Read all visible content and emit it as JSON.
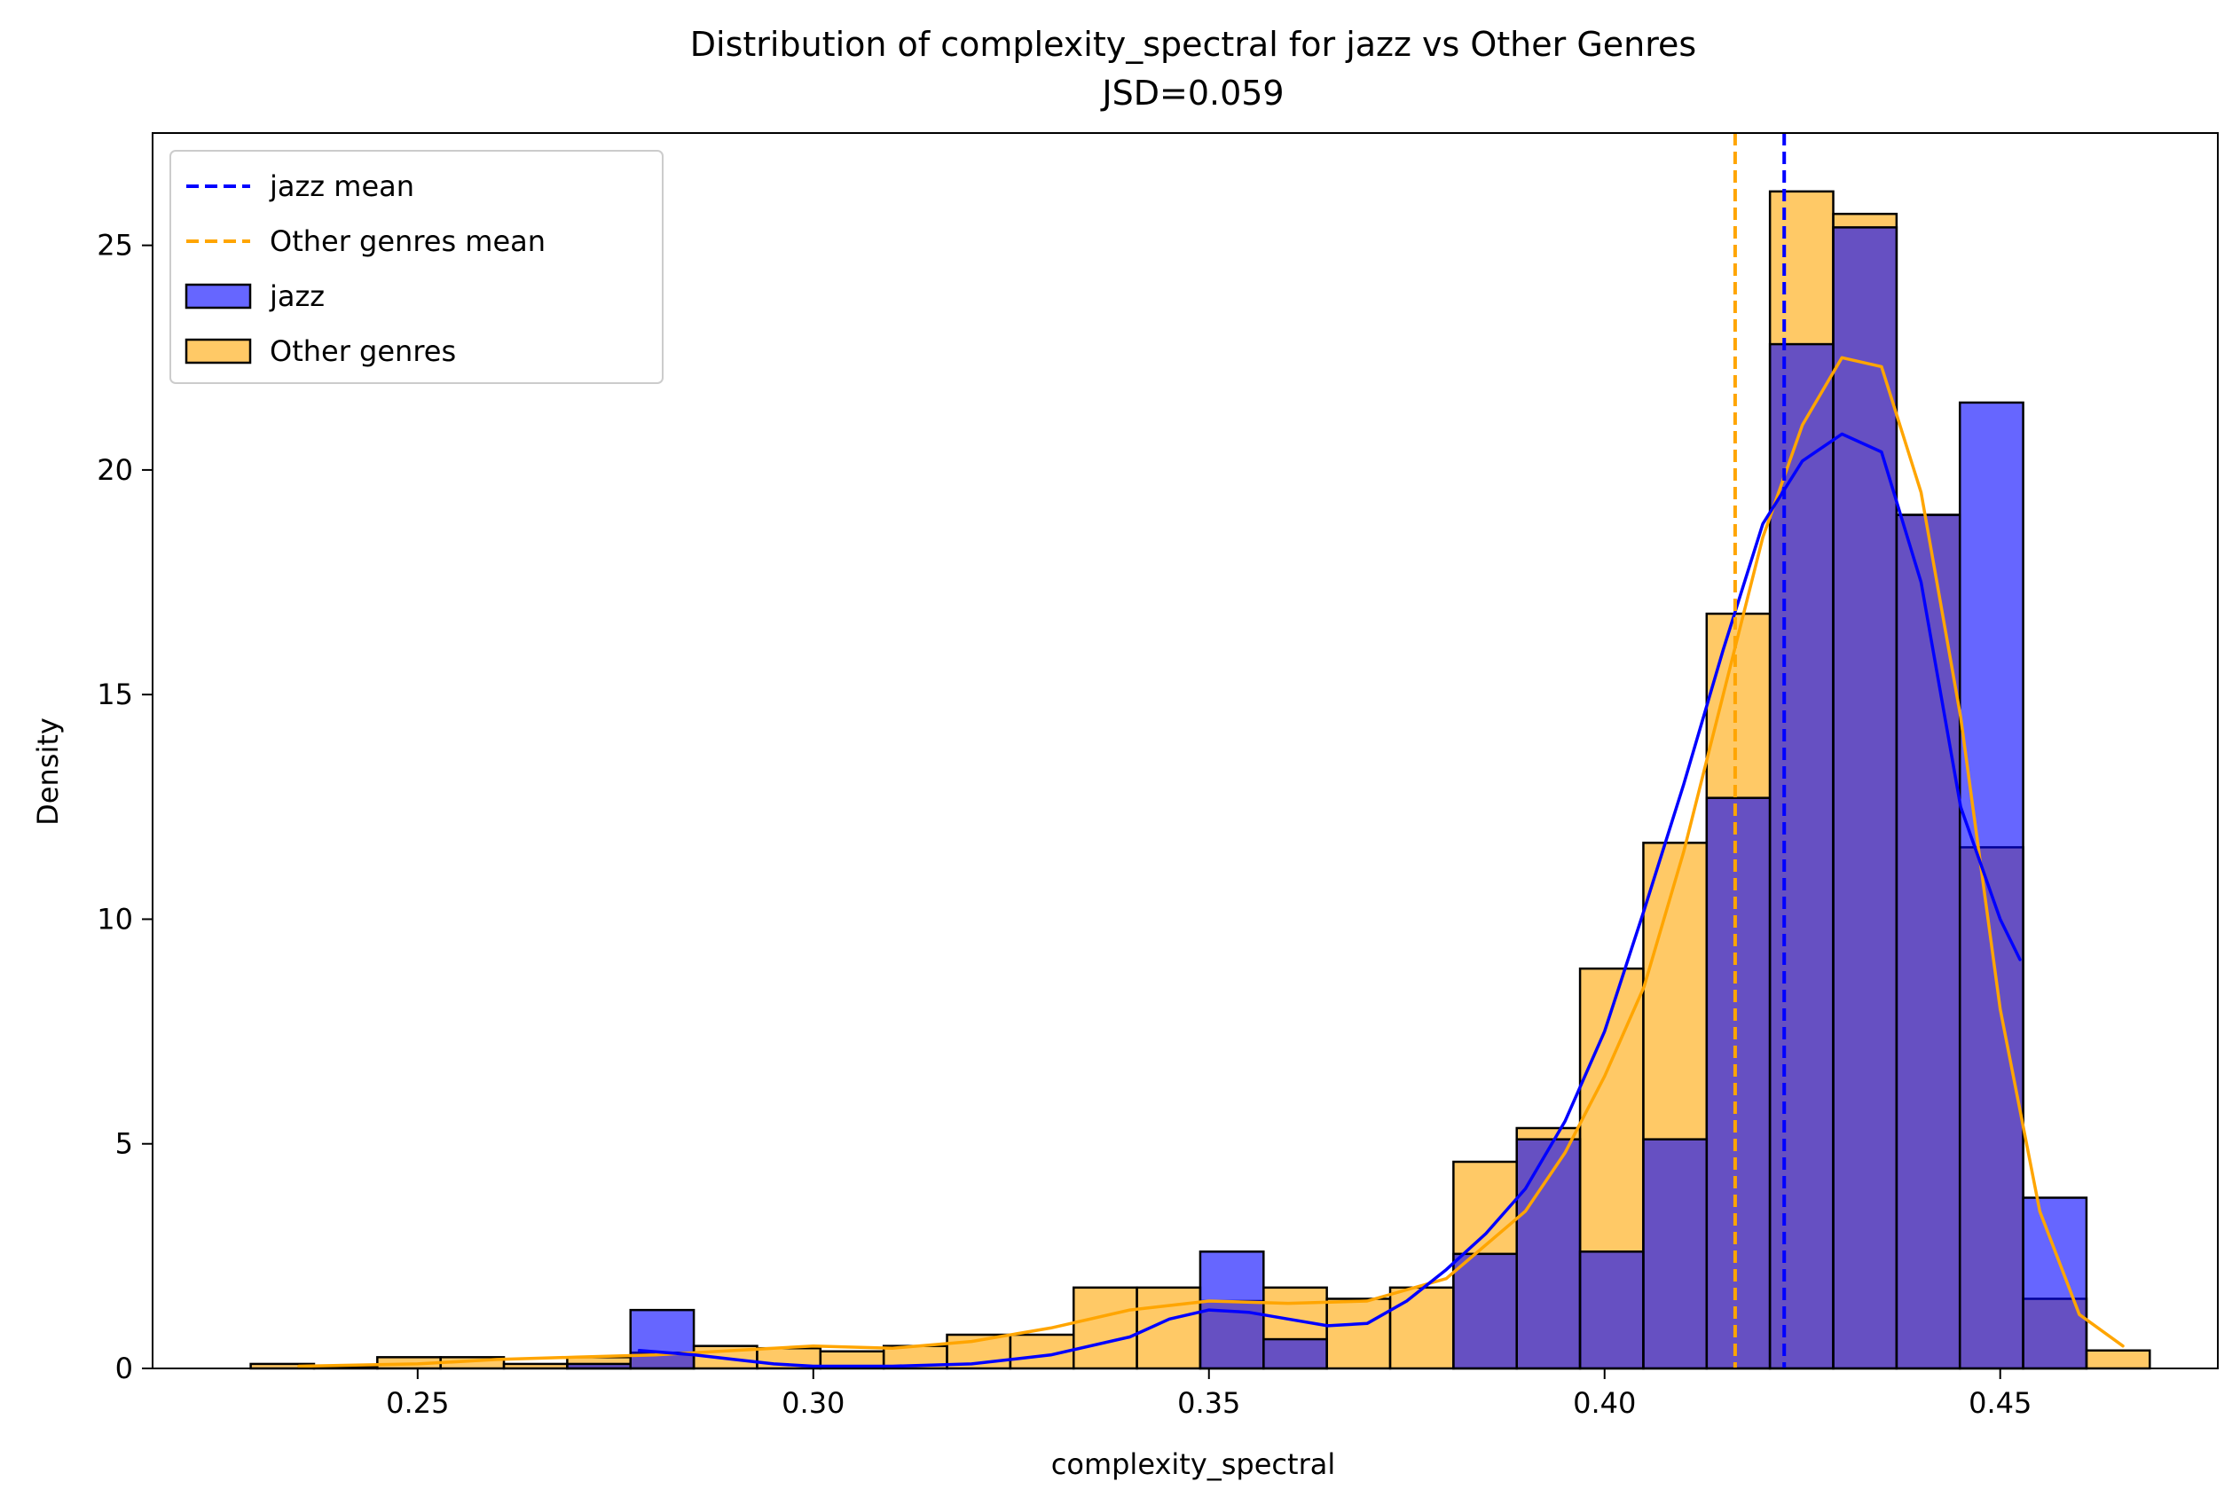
{
  "chart_data": {
    "type": "histogram",
    "title": "Distribution of complexity_spectral for jazz vs Other Genres",
    "subtitle": "JSD=0.059",
    "xlabel": "complexity_spectral",
    "ylabel": "Density",
    "xlim": [
      0.2165,
      0.4775
    ],
    "ylim": [
      0,
      27.5
    ],
    "xticks": [
      "0.25",
      "0.30",
      "0.35",
      "0.40",
      "0.45"
    ],
    "yticks": [
      "0",
      "5",
      "10",
      "15",
      "20",
      "25"
    ],
    "legend_position": "upper-left",
    "colors": {
      "jazz": "#0000ff",
      "other": "#ffa500",
      "edge": "#000000"
    },
    "bin_edges": [
      0.2289,
      0.2369,
      0.2449,
      0.2529,
      0.2609,
      0.2689,
      0.2769,
      0.2849,
      0.2929,
      0.3009,
      0.3089,
      0.3169,
      0.3249,
      0.3329,
      0.3409,
      0.3489,
      0.3569,
      0.3649,
      0.3729,
      0.3809,
      0.3889,
      0.3969,
      0.4049,
      0.4129,
      0.4209,
      0.4289,
      0.4369,
      0.4449,
      0.4529,
      0.4609,
      0.4689
    ],
    "series": [
      {
        "name": "jazz",
        "color": "#0000ff",
        "mean": 0.4227,
        "densities": [
          0,
          0,
          0,
          0,
          0,
          0.1,
          1.3,
          0,
          0,
          0,
          0,
          0,
          0,
          0,
          0,
          2.6,
          0.65,
          0,
          0,
          2.55,
          5.1,
          2.6,
          5.1,
          12.7,
          22.8,
          25.4,
          19.0,
          21.5,
          3.8,
          0
        ],
        "kde_x": [
          0.278,
          0.285,
          0.29,
          0.295,
          0.3,
          0.31,
          0.32,
          0.33,
          0.34,
          0.345,
          0.35,
          0.355,
          0.36,
          0.365,
          0.37,
          0.375,
          0.38,
          0.385,
          0.39,
          0.395,
          0.4,
          0.405,
          0.41,
          0.415,
          0.42,
          0.425,
          0.43,
          0.435,
          0.44,
          0.445,
          0.45,
          0.4525
        ],
        "kde_y": [
          0.4,
          0.3,
          0.2,
          0.1,
          0.05,
          0.05,
          0.1,
          0.3,
          0.7,
          1.1,
          1.3,
          1.25,
          1.1,
          0.95,
          1.0,
          1.5,
          2.2,
          3.0,
          4.0,
          5.5,
          7.5,
          10.2,
          13.0,
          16.0,
          18.8,
          20.2,
          20.8,
          20.4,
          17.5,
          12.5,
          10.0,
          9.1
        ]
      },
      {
        "name": "Other genres",
        "color": "#ffa500",
        "mean": 0.4165,
        "densities": [
          0.1,
          0.05,
          0.25,
          0.25,
          0.1,
          0.25,
          0.35,
          0.5,
          0.45,
          0.38,
          0.5,
          0.75,
          0.75,
          1.8,
          1.8,
          1.5,
          1.8,
          1.55,
          1.8,
          4.6,
          5.35,
          8.9,
          11.7,
          16.8,
          26.2,
          25.7,
          19.0,
          11.6,
          1.55,
          0.4
        ],
        "kde_x": [
          0.235,
          0.25,
          0.26,
          0.27,
          0.28,
          0.29,
          0.3,
          0.31,
          0.32,
          0.33,
          0.34,
          0.35,
          0.36,
          0.37,
          0.38,
          0.39,
          0.395,
          0.4,
          0.405,
          0.41,
          0.415,
          0.42,
          0.425,
          0.43,
          0.435,
          0.44,
          0.445,
          0.45,
          0.455,
          0.46,
          0.4655
        ],
        "kde_y": [
          0.05,
          0.1,
          0.2,
          0.25,
          0.3,
          0.4,
          0.5,
          0.45,
          0.6,
          0.9,
          1.3,
          1.5,
          1.45,
          1.5,
          2.0,
          3.5,
          4.8,
          6.5,
          8.5,
          11.5,
          15.0,
          18.5,
          21.0,
          22.5,
          22.3,
          19.5,
          14.5,
          8.0,
          3.5,
          1.2,
          0.5
        ]
      }
    ],
    "legend": [
      {
        "label": "jazz mean",
        "kind": "dashed-line",
        "color": "#0000ff"
      },
      {
        "label": "Other genres mean",
        "kind": "dashed-line",
        "color": "#ffa500"
      },
      {
        "label": "jazz",
        "kind": "patch",
        "color": "#0000ff"
      },
      {
        "label": "Other genres",
        "kind": "patch",
        "color": "#ffa500"
      }
    ]
  }
}
